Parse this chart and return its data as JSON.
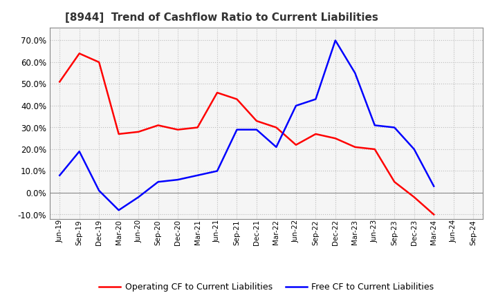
{
  "title": "[8944]  Trend of Cashflow Ratio to Current Liabilities",
  "x_labels": [
    "Jun-19",
    "Sep-19",
    "Dec-19",
    "Mar-20",
    "Jun-20",
    "Sep-20",
    "Dec-20",
    "Mar-21",
    "Jun-21",
    "Sep-21",
    "Dec-21",
    "Mar-22",
    "Jun-22",
    "Sep-22",
    "Dec-22",
    "Mar-23",
    "Jun-23",
    "Sep-23",
    "Dec-23",
    "Mar-24",
    "Jun-24",
    "Sep-24"
  ],
  "operating_cf": [
    0.51,
    0.64,
    0.6,
    0.27,
    0.28,
    0.31,
    0.29,
    0.3,
    0.46,
    0.43,
    0.33,
    0.3,
    0.22,
    0.27,
    0.25,
    0.21,
    0.2,
    0.05,
    -0.02,
    -0.1,
    null,
    null
  ],
  "free_cf": [
    0.08,
    0.19,
    0.01,
    -0.08,
    -0.02,
    0.05,
    0.06,
    0.08,
    0.1,
    0.29,
    0.29,
    0.21,
    0.4,
    0.43,
    0.7,
    0.55,
    0.31,
    0.3,
    0.2,
    0.03,
    null,
    null
  ],
  "ylim": [
    -0.12,
    0.76
  ],
  "yticks": [
    -0.1,
    0.0,
    0.1,
    0.2,
    0.3,
    0.4,
    0.5,
    0.6,
    0.7
  ],
  "operating_color": "#ff0000",
  "free_color": "#0000ff",
  "bg_color": "#ffffff",
  "plot_bg_color": "#f5f5f5",
  "grid_color": "#bbbbbb",
  "legend_op": "Operating CF to Current Liabilities",
  "legend_free": "Free CF to Current Liabilities"
}
